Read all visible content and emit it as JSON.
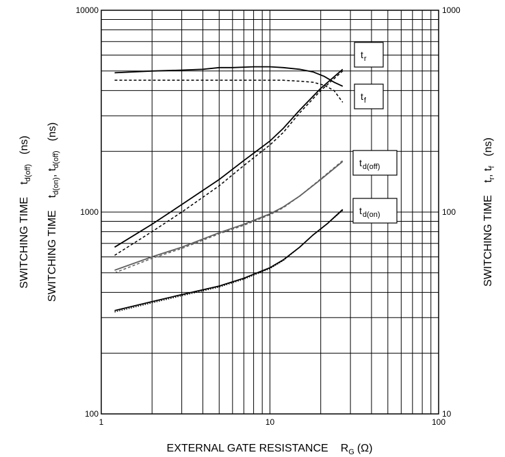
{
  "chart_data": {
    "type": "line",
    "xscale": "log",
    "yscale": "log",
    "xlim": [
      1,
      100
    ],
    "ylim_left": [
      100,
      10000
    ],
    "ylim_right": [
      10,
      1000
    ],
    "grid": true,
    "x_ticks": [
      "1",
      "10",
      "100"
    ],
    "y_left_ticks": [
      "100",
      "1000",
      "10000"
    ],
    "y_right_ticks": [
      "10",
      "100",
      "1000"
    ],
    "xlabel": {
      "main": "EXTERNAL GATE RESISTANCE",
      "symbol": "R",
      "sub": "G",
      "unit": "(Ω)"
    },
    "ylabel_left_outer": {
      "main": "SWITCHING TIME",
      "sym": "t",
      "sub": "d(off)",
      "unit": "(ns)"
    },
    "ylabel_left_inner": {
      "main": "SWITCHING TIME",
      "sym1": "t",
      "sub1": "d(on)",
      "sep": ", ",
      "sym2": "t",
      "sub2": "d(off)",
      "unit": "(ns)"
    },
    "ylabel_right": {
      "main": "SWITCHING TIME",
      "sym1": "t",
      "sub1": "r",
      "sep": ", ",
      "sym2": "t",
      "sub2": "f",
      "unit": "(ns)"
    },
    "series": [
      {
        "name": "tr",
        "label_sym": "t",
        "label_sub": "r",
        "axis": "right",
        "color": "#000000",
        "dash": "solid",
        "x": [
          1.2,
          2,
          3,
          4,
          5,
          6,
          8,
          10,
          12,
          15,
          18,
          21,
          24,
          27
        ],
        "y": [
          490,
          500,
          505,
          510,
          520,
          520,
          525,
          525,
          520,
          510,
          495,
          470,
          440,
          420
        ]
      },
      {
        "name": "tf",
        "label_sym": "t",
        "label_sub": "f",
        "axis": "right",
        "color": "#000000",
        "dash": "dashed",
        "x": [
          1.2,
          2,
          4,
          6,
          8,
          10,
          12,
          15,
          18,
          21,
          24,
          27
        ],
        "y": [
          450,
          450,
          450,
          450,
          450,
          450,
          450,
          445,
          440,
          425,
          400,
          350
        ]
      },
      {
        "name": "td(off) upper",
        "axis": "left",
        "color": "#000000",
        "dash": "solid",
        "x": [
          1.2,
          2,
          3,
          5,
          7,
          10,
          12,
          15,
          20,
          27
        ],
        "y": [
          670,
          870,
          1090,
          1450,
          1800,
          2250,
          2600,
          3200,
          4100,
          5100
        ]
      },
      {
        "name": "td(off) upper dashed",
        "axis": "left",
        "color": "#000000",
        "dash": "dashed",
        "x": [
          1.2,
          2,
          3,
          5,
          7,
          10,
          12,
          15,
          20,
          27
        ],
        "y": [
          610,
          800,
          1000,
          1350,
          1700,
          2150,
          2480,
          3100,
          4000,
          5000
        ]
      },
      {
        "name": "td(off)",
        "label_sym": "t",
        "label_sub": "d(off)",
        "axis": "left",
        "color": "#606060",
        "dash": "solid",
        "x": [
          1.2,
          2,
          3,
          5,
          7,
          10,
          12,
          15,
          20,
          27
        ],
        "y": [
          515,
          600,
          670,
          790,
          870,
          980,
          1060,
          1200,
          1450,
          1780
        ]
      },
      {
        "name": "td(off) dashed",
        "axis": "left",
        "color": "#606060",
        "dash": "dashed",
        "x": [
          1.2,
          2,
          3,
          5,
          7,
          10,
          12,
          15,
          20,
          27
        ],
        "y": [
          500,
          590,
          660,
          780,
          860,
          970,
          1050,
          1200,
          1460,
          1800
        ]
      },
      {
        "name": "td(on)",
        "label_sym": "t",
        "label_sub": "d(on)",
        "axis": "left",
        "color": "#000000",
        "dash": "solid",
        "x": [
          1.2,
          2,
          3,
          5,
          7,
          10,
          12,
          15,
          18,
          22,
          27
        ],
        "y": [
          325,
          360,
          390,
          430,
          470,
          530,
          580,
          670,
          770,
          880,
          1030
        ]
      },
      {
        "name": "td(on) dotted",
        "axis": "left",
        "color": "#000000",
        "dash": "dotted",
        "x": [
          1.2,
          2,
          3,
          5,
          7,
          10,
          12,
          15,
          18,
          22,
          27
        ],
        "y": [
          320,
          355,
          385,
          425,
          465,
          525,
          575,
          670,
          770,
          880,
          1020
        ]
      }
    ],
    "labels": [
      {
        "sym": "t",
        "sub": "r"
      },
      {
        "sym": "t",
        "sub": "f"
      },
      {
        "sym": "t",
        "sub": "d(off)"
      },
      {
        "sym": "t",
        "sub": "d(on)"
      }
    ]
  }
}
